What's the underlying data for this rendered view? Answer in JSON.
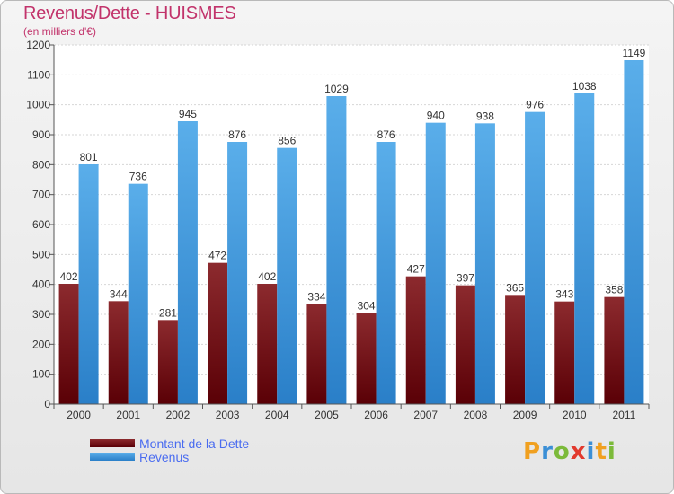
{
  "chart_data": {
    "type": "bar",
    "title": "Revenus/Dette - HUISMES",
    "subtitle": "(en milliers d'€)",
    "categories": [
      "2000",
      "2001",
      "2002",
      "2003",
      "2004",
      "2005",
      "2006",
      "2007",
      "2008",
      "2009",
      "2010",
      "2011"
    ],
    "series": [
      {
        "name": "Montant de la Dette",
        "color": "#7a0d12",
        "values": [
          402,
          344,
          281,
          472,
          402,
          334,
          304,
          427,
          397,
          365,
          343,
          358
        ]
      },
      {
        "name": "Revenus",
        "color": "#3d96e0",
        "values": [
          801,
          736,
          945,
          876,
          856,
          1029,
          876,
          940,
          938,
          976,
          1038,
          1149
        ]
      }
    ],
    "ylim": [
      0,
      1200
    ],
    "yticks": [
      0,
      100,
      200,
      300,
      400,
      500,
      600,
      700,
      800,
      900,
      1000,
      1100,
      1200
    ],
    "grid": true,
    "legend_position": "bottom-left"
  },
  "logo": {
    "letters": [
      "P",
      "r",
      "o",
      "x",
      "i",
      "t",
      "i"
    ]
  }
}
